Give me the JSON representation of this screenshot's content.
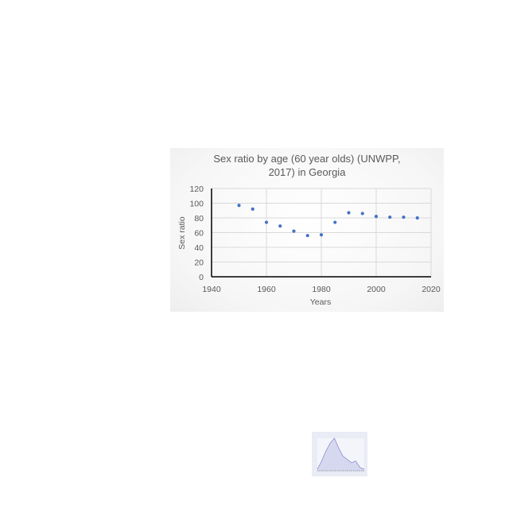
{
  "chart_data": {
    "type": "scatter",
    "title_line1": "Sex ratio by age (60 year olds) (UNWPP,",
    "title_line2": "2017) in Georgia",
    "xlabel": "Years",
    "ylabel": "Sex ratio",
    "xlim": [
      1940,
      2020
    ],
    "ylim": [
      0,
      120
    ],
    "x_ticks": [
      1940,
      1960,
      1980,
      2000,
      2020
    ],
    "y_ticks": [
      0,
      20,
      40,
      60,
      80,
      100,
      120
    ],
    "grid": true,
    "legend": "none",
    "points": [
      {
        "x": 1950,
        "y": 97
      },
      {
        "x": 1955,
        "y": 92
      },
      {
        "x": 1960,
        "y": 74
      },
      {
        "x": 1965,
        "y": 69
      },
      {
        "x": 1970,
        "y": 62
      },
      {
        "x": 1975,
        "y": 56
      },
      {
        "x": 1980,
        "y": 57
      },
      {
        "x": 1985,
        "y": 74
      },
      {
        "x": 1990,
        "y": 87
      },
      {
        "x": 1995,
        "y": 86
      },
      {
        "x": 2000,
        "y": 82
      },
      {
        "x": 2005,
        "y": 81
      },
      {
        "x": 2010,
        "y": 81
      },
      {
        "x": 2015,
        "y": 80
      }
    ],
    "point_color": "#4472c4"
  },
  "thumbnail": {
    "type": "area",
    "color": "#8c8fcf",
    "values": [
      0.05,
      0.3,
      0.6,
      0.85,
      1.0,
      0.7,
      0.45,
      0.35,
      0.25,
      0.3,
      0.1,
      0.05
    ]
  }
}
